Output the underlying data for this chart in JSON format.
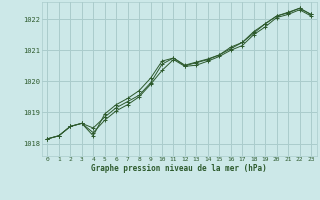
{
  "bg_color": "#cce8e8",
  "grid_color": "#aacccc",
  "line_color": "#2d5a2d",
  "marker_color": "#2d5a2d",
  "xlabel": "Graphe pression niveau de la mer (hPa)",
  "xlim": [
    -0.5,
    23.5
  ],
  "ylim": [
    1017.6,
    1022.55
  ],
  "yticks": [
    1018,
    1019,
    1020,
    1021,
    1022
  ],
  "xticks": [
    0,
    1,
    2,
    3,
    4,
    5,
    6,
    7,
    8,
    9,
    10,
    11,
    12,
    13,
    14,
    15,
    16,
    17,
    18,
    19,
    20,
    21,
    22,
    23
  ],
  "series": [
    [
      1018.15,
      1018.25,
      1018.55,
      1018.65,
      1018.5,
      1018.85,
      1019.15,
      1019.35,
      1019.55,
      1019.95,
      1020.55,
      1020.75,
      1020.5,
      1020.6,
      1020.7,
      1020.85,
      1021.05,
      1021.25,
      1021.55,
      1021.85,
      1022.1,
      1022.2,
      1022.35,
      1022.15
    ],
    [
      1018.15,
      1018.25,
      1018.55,
      1018.65,
      1018.35,
      1018.75,
      1019.05,
      1019.25,
      1019.5,
      1019.9,
      1020.35,
      1020.7,
      1020.48,
      1020.52,
      1020.65,
      1020.8,
      1021.0,
      1021.15,
      1021.5,
      1021.75,
      1022.05,
      1022.15,
      1022.3,
      1022.1
    ],
    [
      1018.15,
      1018.25,
      1018.55,
      1018.65,
      1018.25,
      1018.95,
      1019.25,
      1019.45,
      1019.7,
      1020.1,
      1020.65,
      1020.75,
      1020.52,
      1020.62,
      1020.72,
      1020.85,
      1021.1,
      1021.25,
      1021.6,
      1021.85,
      1022.1,
      1022.22,
      1022.35,
      1022.15
    ]
  ]
}
